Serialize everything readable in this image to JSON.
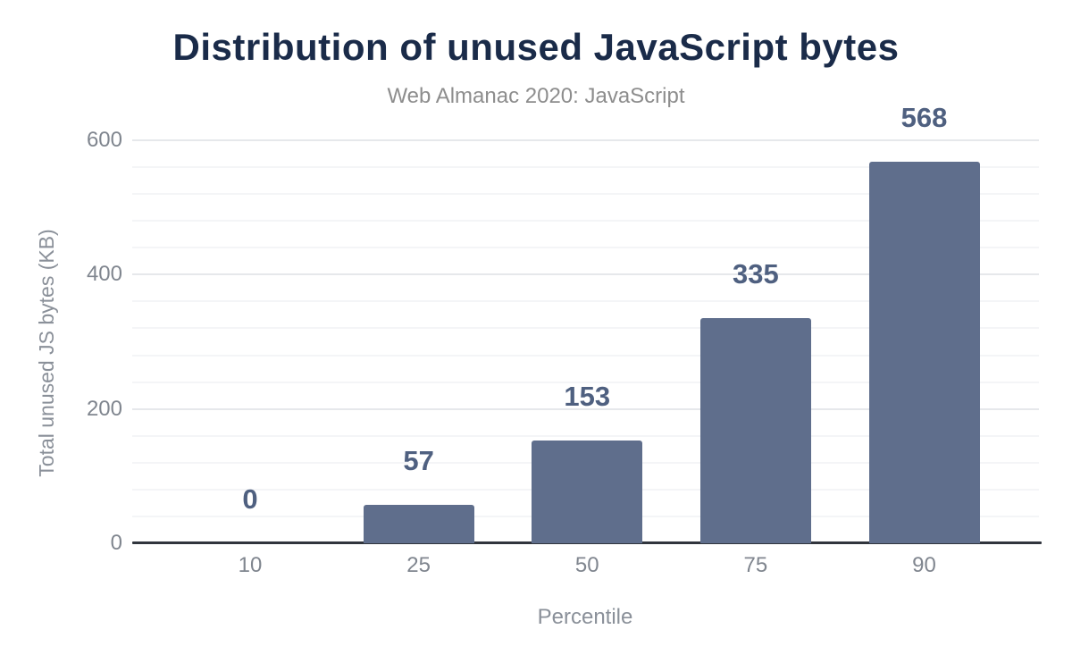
{
  "chart_data": {
    "type": "bar",
    "title": "Distribution of unused JavaScript bytes",
    "subtitle": "Web Almanac 2020: JavaScript",
    "xlabel": "Percentile",
    "ylabel": "Total unused JS bytes (KB)",
    "categories": [
      "10",
      "25",
      "50",
      "75",
      "90"
    ],
    "values": [
      0,
      57,
      153,
      335,
      568
    ],
    "data_labels": [
      "0",
      "57",
      "153",
      "335",
      "568"
    ],
    "ylim": [
      0,
      600
    ],
    "yticks": [
      "0",
      "200",
      "400",
      "600"
    ],
    "ytick_values": [
      0,
      200,
      400,
      600
    ],
    "minor_grid_step": 40,
    "grid": true,
    "legend": false,
    "colors": {
      "bar": "#5f6e8c",
      "data_label": "#4f6080",
      "title": "#1a2b49",
      "subtitle": "#8d8d8d",
      "tick_label": "#80868f",
      "axis_title": "#8a9099",
      "axis_line": "#31353d",
      "major_grid": "#e6e8eb",
      "minor_grid": "#f4f5f7",
      "background": "#ffffff"
    }
  }
}
